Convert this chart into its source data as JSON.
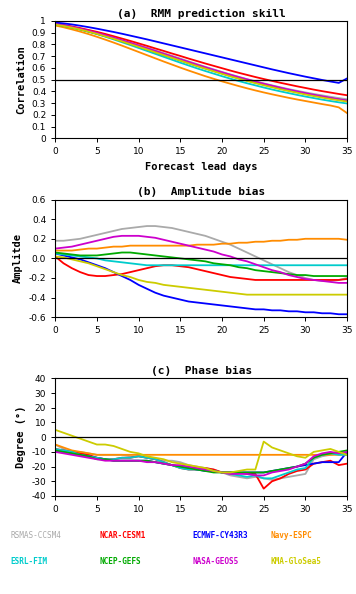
{
  "title_a": "(a)  RMM prediction skill",
  "title_b": "(b)  Amplitude bias",
  "title_c": "(c)  Phase bias",
  "xlabel_a": "Forecast lead days",
  "ylabel_a": "Correlation",
  "ylabel_b": "Amplitde",
  "ylabel_c": "Degree (°)",
  "x": [
    0,
    1,
    2,
    3,
    4,
    5,
    6,
    7,
    8,
    9,
    10,
    11,
    12,
    13,
    14,
    15,
    16,
    17,
    18,
    19,
    20,
    21,
    22,
    23,
    24,
    25,
    26,
    27,
    28,
    29,
    30,
    31,
    32,
    33,
    34,
    35
  ],
  "models": [
    "RSMAS-CCSM4",
    "NCAR-CESM1",
    "ECMWF-CY43R3",
    "Navy-ESPC",
    "ESRL-FIM",
    "NCEP-GEFS",
    "NASA-GEOS5",
    "KMA-GloSea5"
  ],
  "model_colors": [
    "#aaaaaa",
    "#ff0000",
    "#0000ff",
    "#ff8c00",
    "#00cccc",
    "#00aa00",
    "#cc00cc",
    "#cccc00"
  ],
  "corr_data": {
    "RSMAS-CCSM4": [
      0.97,
      0.96,
      0.945,
      0.93,
      0.913,
      0.895,
      0.875,
      0.855,
      0.835,
      0.814,
      0.793,
      0.771,
      0.748,
      0.725,
      0.702,
      0.679,
      0.655,
      0.632,
      0.609,
      0.587,
      0.565,
      0.544,
      0.524,
      0.504,
      0.486,
      0.468,
      0.451,
      0.435,
      0.419,
      0.405,
      0.391,
      0.378,
      0.366,
      0.354,
      0.343,
      0.333
    ],
    "NCAR-CESM1": [
      0.975,
      0.965,
      0.952,
      0.938,
      0.922,
      0.906,
      0.888,
      0.869,
      0.849,
      0.829,
      0.808,
      0.787,
      0.765,
      0.744,
      0.722,
      0.701,
      0.679,
      0.658,
      0.637,
      0.617,
      0.597,
      0.577,
      0.558,
      0.54,
      0.522,
      0.505,
      0.489,
      0.473,
      0.458,
      0.443,
      0.429,
      0.415,
      0.402,
      0.39,
      0.378,
      0.367
    ],
    "ECMWF-CY43R3": [
      0.985,
      0.978,
      0.969,
      0.958,
      0.946,
      0.933,
      0.919,
      0.905,
      0.89,
      0.874,
      0.858,
      0.842,
      0.825,
      0.808,
      0.791,
      0.774,
      0.757,
      0.74,
      0.723,
      0.706,
      0.689,
      0.672,
      0.655,
      0.638,
      0.621,
      0.604,
      0.587,
      0.571,
      0.555,
      0.54,
      0.525,
      0.511,
      0.497,
      0.484,
      0.472,
      0.51
    ],
    "Navy-ESPC": [
      0.96,
      0.945,
      0.927,
      0.908,
      0.887,
      0.864,
      0.84,
      0.815,
      0.789,
      0.762,
      0.735,
      0.708,
      0.681,
      0.654,
      0.628,
      0.602,
      0.577,
      0.553,
      0.529,
      0.507,
      0.485,
      0.465,
      0.445,
      0.426,
      0.408,
      0.391,
      0.375,
      0.36,
      0.345,
      0.331,
      0.318,
      0.305,
      0.292,
      0.28,
      0.264,
      0.215
    ],
    "ESRL-FIM": [
      0.97,
      0.958,
      0.943,
      0.926,
      0.907,
      0.887,
      0.865,
      0.842,
      0.818,
      0.794,
      0.769,
      0.744,
      0.719,
      0.694,
      0.669,
      0.644,
      0.62,
      0.596,
      0.573,
      0.551,
      0.529,
      0.508,
      0.488,
      0.469,
      0.451,
      0.433,
      0.416,
      0.4,
      0.385,
      0.37,
      0.356,
      0.343,
      0.33,
      0.318,
      0.307,
      0.297
    ],
    "NCEP-GEFS": [
      0.968,
      0.957,
      0.943,
      0.927,
      0.909,
      0.89,
      0.87,
      0.849,
      0.827,
      0.804,
      0.781,
      0.758,
      0.734,
      0.71,
      0.687,
      0.663,
      0.64,
      0.617,
      0.595,
      0.573,
      0.552,
      0.531,
      0.511,
      0.492,
      0.474,
      0.457,
      0.44,
      0.424,
      0.408,
      0.394,
      0.38,
      0.366,
      0.354,
      0.342,
      0.33,
      0.32
    ],
    "NASA-GEOS5": [
      0.972,
      0.961,
      0.948,
      0.933,
      0.916,
      0.898,
      0.878,
      0.857,
      0.835,
      0.813,
      0.79,
      0.767,
      0.744,
      0.72,
      0.697,
      0.673,
      0.65,
      0.627,
      0.605,
      0.583,
      0.562,
      0.541,
      0.521,
      0.502,
      0.483,
      0.465,
      0.448,
      0.431,
      0.415,
      0.4,
      0.385,
      0.371,
      0.358,
      0.345,
      0.333,
      0.322
    ],
    "KMA-GloSea5": [
      0.967,
      0.956,
      0.942,
      0.926,
      0.908,
      0.889,
      0.868,
      0.847,
      0.825,
      0.802,
      0.779,
      0.756,
      0.732,
      0.709,
      0.685,
      0.662,
      0.638,
      0.615,
      0.593,
      0.571,
      0.549,
      0.528,
      0.508,
      0.489,
      0.47,
      0.452,
      0.435,
      0.418,
      0.403,
      0.388,
      0.373,
      0.36,
      0.347,
      0.335,
      0.324,
      0.313
    ]
  },
  "amp_data": {
    "RSMAS-CCSM4": [
      0.18,
      0.18,
      0.19,
      0.2,
      0.22,
      0.24,
      0.26,
      0.28,
      0.3,
      0.31,
      0.32,
      0.33,
      0.33,
      0.32,
      0.31,
      0.29,
      0.27,
      0.25,
      0.23,
      0.2,
      0.17,
      0.14,
      0.1,
      0.06,
      0.02,
      -0.02,
      -0.06,
      -0.1,
      -0.14,
      -0.17,
      -0.2,
      -0.22,
      -0.23,
      -0.23,
      -0.22,
      -0.2
    ],
    "NCAR-CESM1": [
      0.02,
      -0.05,
      -0.1,
      -0.14,
      -0.17,
      -0.18,
      -0.18,
      -0.17,
      -0.16,
      -0.14,
      -0.12,
      -0.1,
      -0.08,
      -0.07,
      -0.07,
      -0.08,
      -0.09,
      -0.11,
      -0.13,
      -0.15,
      -0.17,
      -0.19,
      -0.2,
      -0.21,
      -0.22,
      -0.22,
      -0.22,
      -0.22,
      -0.22,
      -0.22,
      -0.22,
      -0.22,
      -0.22,
      -0.22,
      -0.22,
      -0.21
    ],
    "ECMWF-CY43R3": [
      0.05,
      0.03,
      0.01,
      -0.01,
      -0.04,
      -0.07,
      -0.1,
      -0.14,
      -0.18,
      -0.22,
      -0.27,
      -0.31,
      -0.35,
      -0.38,
      -0.4,
      -0.42,
      -0.44,
      -0.45,
      -0.46,
      -0.47,
      -0.48,
      -0.49,
      -0.5,
      -0.51,
      -0.52,
      -0.52,
      -0.53,
      -0.53,
      -0.54,
      -0.54,
      -0.55,
      -0.55,
      -0.56,
      -0.56,
      -0.57,
      -0.57
    ],
    "Navy-ESPC": [
      0.08,
      0.08,
      0.08,
      0.09,
      0.1,
      0.1,
      0.11,
      0.12,
      0.12,
      0.13,
      0.13,
      0.13,
      0.13,
      0.13,
      0.13,
      0.13,
      0.13,
      0.14,
      0.14,
      0.14,
      0.15,
      0.15,
      0.16,
      0.16,
      0.17,
      0.17,
      0.18,
      0.18,
      0.19,
      0.19,
      0.2,
      0.2,
      0.2,
      0.2,
      0.2,
      0.19
    ],
    "ESRL-FIM": [
      0.05,
      0.04,
      0.03,
      0.02,
      0.01,
      0.0,
      -0.02,
      -0.03,
      -0.04,
      -0.05,
      -0.06,
      -0.07,
      -0.07,
      -0.07,
      -0.07,
      -0.07,
      -0.07,
      -0.07,
      -0.07,
      -0.07,
      -0.07,
      -0.07,
      -0.07,
      -0.07,
      -0.07,
      -0.07,
      -0.07,
      -0.07,
      -0.07,
      -0.07,
      -0.07,
      -0.07,
      -0.07,
      -0.07,
      -0.07,
      -0.07
    ],
    "NCEP-GEFS": [
      0.06,
      0.05,
      0.04,
      0.03,
      0.03,
      0.03,
      0.04,
      0.05,
      0.06,
      0.06,
      0.05,
      0.04,
      0.03,
      0.02,
      0.01,
      0.0,
      -0.01,
      -0.02,
      -0.03,
      -0.05,
      -0.06,
      -0.07,
      -0.09,
      -0.1,
      -0.12,
      -0.13,
      -0.14,
      -0.15,
      -0.16,
      -0.17,
      -0.17,
      -0.18,
      -0.18,
      -0.18,
      -0.18,
      -0.18
    ],
    "NASA-GEOS5": [
      0.1,
      0.11,
      0.12,
      0.14,
      0.16,
      0.18,
      0.2,
      0.22,
      0.23,
      0.23,
      0.23,
      0.22,
      0.21,
      0.19,
      0.17,
      0.15,
      0.13,
      0.11,
      0.09,
      0.07,
      0.04,
      0.02,
      -0.01,
      -0.03,
      -0.06,
      -0.09,
      -0.12,
      -0.14,
      -0.17,
      -0.19,
      -0.21,
      -0.22,
      -0.23,
      -0.24,
      -0.25,
      -0.25
    ],
    "KMA-GloSea5": [
      0.02,
      0.01,
      -0.01,
      -0.03,
      -0.05,
      -0.08,
      -0.11,
      -0.14,
      -0.17,
      -0.19,
      -0.22,
      -0.24,
      -0.25,
      -0.27,
      -0.28,
      -0.29,
      -0.3,
      -0.31,
      -0.32,
      -0.33,
      -0.34,
      -0.35,
      -0.36,
      -0.37,
      -0.37,
      -0.37,
      -0.37,
      -0.37,
      -0.37,
      -0.37,
      -0.37,
      -0.37,
      -0.37,
      -0.37,
      -0.37,
      -0.37
    ]
  },
  "phase_data": {
    "RSMAS-CCSM4": [
      -5,
      -8,
      -10,
      -10,
      -11,
      -12,
      -12,
      -12,
      -12,
      -13,
      -13,
      -14,
      -15,
      -16,
      -16,
      -17,
      -19,
      -20,
      -21,
      -22,
      -24,
      -26,
      -27,
      -28,
      -27,
      -28,
      -29,
      -28,
      -27,
      -26,
      -25,
      -15,
      -13,
      -12,
      -11,
      -10
    ],
    "NCAR-CESM1": [
      -8,
      -9,
      -10,
      -11,
      -12,
      -14,
      -15,
      -15,
      -14,
      -14,
      -13,
      -14,
      -15,
      -17,
      -19,
      -21,
      -22,
      -22,
      -21,
      -22,
      -24,
      -24,
      -24,
      -25,
      -25,
      -35,
      -30,
      -28,
      -25,
      -23,
      -22,
      -18,
      -17,
      -16,
      -19,
      -18
    ],
    "ECMWF-CY43R3": [
      -10,
      -10,
      -11,
      -12,
      -13,
      -14,
      -15,
      -16,
      -16,
      -16,
      -16,
      -16,
      -17,
      -18,
      -19,
      -20,
      -21,
      -22,
      -23,
      -23,
      -24,
      -24,
      -24,
      -24,
      -24,
      -24,
      -23,
      -22,
      -21,
      -20,
      -19,
      -18,
      -17,
      -17,
      -17,
      -10
    ],
    "Navy-ESPC": [
      -5,
      -7,
      -9,
      -10,
      -11,
      -12,
      -12,
      -12,
      -12,
      -12,
      -12,
      -12,
      -12,
      -12,
      -12,
      -12,
      -12,
      -12,
      -12,
      -12,
      -12,
      -12,
      -12,
      -12,
      -12,
      -12,
      -12,
      -12,
      -12,
      -12,
      -12,
      -12,
      -12,
      -12,
      -12,
      -12
    ],
    "ESRL-FIM": [
      -8,
      -9,
      -10,
      -12,
      -13,
      -14,
      -15,
      -15,
      -14,
      -14,
      -13,
      -14,
      -15,
      -17,
      -19,
      -21,
      -22,
      -22,
      -22,
      -23,
      -24,
      -25,
      -26,
      -27,
      -26,
      -28,
      -28,
      -26,
      -24,
      -22,
      -21,
      -14,
      -12,
      -11,
      -12,
      -12
    ],
    "NCEP-GEFS": [
      -9,
      -10,
      -11,
      -12,
      -13,
      -15,
      -15,
      -16,
      -16,
      -16,
      -16,
      -16,
      -17,
      -18,
      -19,
      -20,
      -21,
      -22,
      -23,
      -24,
      -24,
      -24,
      -24,
      -24,
      -24,
      -24,
      -23,
      -22,
      -21,
      -20,
      -18,
      -14,
      -12,
      -11,
      -10,
      -9
    ],
    "NASA-GEOS5": [
      -10,
      -11,
      -12,
      -13,
      -14,
      -15,
      -16,
      -16,
      -16,
      -16,
      -16,
      -17,
      -17,
      -18,
      -19,
      -19,
      -20,
      -21,
      -22,
      -23,
      -24,
      -25,
      -25,
      -25,
      -26,
      -26,
      -24,
      -23,
      -22,
      -20,
      -18,
      -13,
      -11,
      -10,
      -11,
      -10
    ],
    "KMA-GloSea5": [
      5,
      3,
      1,
      -1,
      -3,
      -5,
      -5,
      -6,
      -8,
      -10,
      -11,
      -13,
      -14,
      -15,
      -17,
      -18,
      -19,
      -20,
      -21,
      -23,
      -24,
      -24,
      -23,
      -22,
      -22,
      -3,
      -7,
      -9,
      -11,
      -13,
      -14,
      -10,
      -9,
      -8,
      -10,
      -12
    ]
  },
  "hline_corr": 0.5,
  "hline_amp": 0.0,
  "hline_phase": 0.0,
  "ylim_a": [
    0,
    1.0
  ],
  "ylim_b": [
    -0.6,
    0.6
  ],
  "ylim_c": [
    -40,
    40
  ],
  "yticks_a": [
    0,
    0.1,
    0.2,
    0.3,
    0.4,
    0.5,
    0.6,
    0.7,
    0.8,
    0.9,
    1.0
  ],
  "yticks_b": [
    -0.6,
    -0.4,
    -0.2,
    0.0,
    0.2,
    0.4,
    0.6
  ],
  "yticks_c": [
    -40,
    -30,
    -20,
    -10,
    0,
    10,
    20,
    30,
    40
  ],
  "xticks": [
    0,
    5,
    10,
    15,
    20,
    25,
    30,
    35
  ],
  "legend_row1": [
    "RSMAS-CCSM4",
    "NCAR-CESM1",
    "ECMWF-CY43R3",
    "Navy-ESPC"
  ],
  "legend_row2": [
    "ESRL-FIM",
    "NCEP-GEFS",
    "NASA-GEOS5",
    "KMA-GloSea5"
  ],
  "legend_colors_row1": [
    "#aaaaaa",
    "#ff0000",
    "#0000ff",
    "#ff8c00"
  ],
  "legend_colors_row2": [
    "#00cccc",
    "#00aa00",
    "#cc00cc",
    "#cccc00"
  ]
}
